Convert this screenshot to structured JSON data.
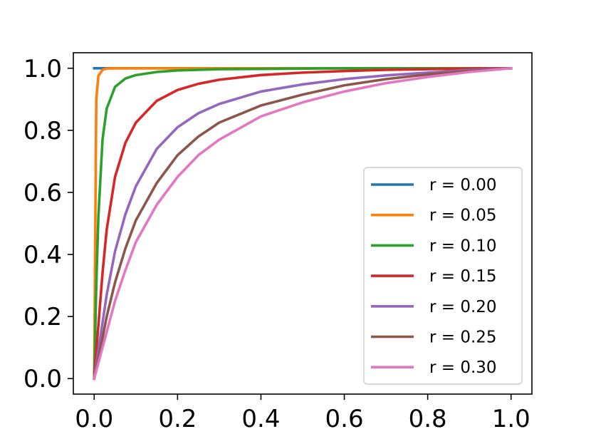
{
  "chart_data": {
    "type": "line",
    "title": "",
    "xlabel": "",
    "ylabel": "",
    "xlim": [
      -0.05,
      1.05
    ],
    "ylim": [
      -0.05,
      1.05
    ],
    "grid": false,
    "legend_position": "lower-right",
    "x_ticks": [
      {
        "value": 0.0,
        "label": "0.0"
      },
      {
        "value": 0.2,
        "label": "0.2"
      },
      {
        "value": 0.4,
        "label": "0.4"
      },
      {
        "value": 0.6,
        "label": "0.6"
      },
      {
        "value": 0.8,
        "label": "0.8"
      },
      {
        "value": 1.0,
        "label": "1.0"
      }
    ],
    "y_ticks": [
      {
        "value": 0.0,
        "label": "0.0"
      },
      {
        "value": 0.2,
        "label": "0.2"
      },
      {
        "value": 0.4,
        "label": "0.4"
      },
      {
        "value": 0.6,
        "label": "0.6"
      },
      {
        "value": 0.8,
        "label": "0.8"
      },
      {
        "value": 1.0,
        "label": "1.0"
      }
    ],
    "x": [
      0,
      0.005,
      0.01,
      0.02,
      0.03,
      0.05,
      0.075,
      0.1,
      0.15,
      0.2,
      0.25,
      0.3,
      0.4,
      0.5,
      0.6,
      0.7,
      0.8,
      0.9,
      1.0
    ],
    "series": [
      {
        "name": "r = 0.00",
        "color": "#1f77b4",
        "values": [
          1.0,
          1.0,
          1.0,
          1.0,
          1.0,
          1.0,
          1.0,
          1.0,
          1.0,
          1.0,
          1.0,
          1.0,
          1.0,
          1.0,
          1.0,
          1.0,
          1.0,
          1.0,
          1.0
        ]
      },
      {
        "name": "r = 0.05",
        "color": "#ff7f0e",
        "values": [
          0.0,
          0.9,
          0.975,
          0.995,
          0.999,
          1.0,
          1.0,
          1.0,
          1.0,
          1.0,
          1.0,
          1.0,
          1.0,
          1.0,
          1.0,
          1.0,
          1.0,
          1.0,
          1.0
        ]
      },
      {
        "name": "r = 0.10",
        "color": "#2ca02c",
        "values": [
          0.0,
          0.3,
          0.52,
          0.77,
          0.87,
          0.94,
          0.967,
          0.978,
          0.988,
          0.993,
          0.995,
          0.997,
          0.998,
          0.999,
          1.0,
          1.0,
          1.0,
          1.0,
          1.0
        ]
      },
      {
        "name": "r = 0.15",
        "color": "#d62728",
        "values": [
          0.0,
          0.09,
          0.17,
          0.34,
          0.48,
          0.65,
          0.76,
          0.825,
          0.895,
          0.93,
          0.95,
          0.963,
          0.978,
          0.986,
          0.991,
          0.995,
          0.997,
          0.999,
          1.0
        ]
      },
      {
        "name": "r = 0.20",
        "color": "#9467bd",
        "values": [
          0.0,
          0.045,
          0.09,
          0.18,
          0.27,
          0.41,
          0.53,
          0.62,
          0.74,
          0.81,
          0.855,
          0.885,
          0.925,
          0.948,
          0.965,
          0.977,
          0.986,
          0.994,
          1.0
        ]
      },
      {
        "name": "r = 0.25",
        "color": "#8c564b",
        "values": [
          0.0,
          0.03,
          0.065,
          0.13,
          0.2,
          0.31,
          0.42,
          0.51,
          0.63,
          0.72,
          0.78,
          0.825,
          0.88,
          0.915,
          0.945,
          0.965,
          0.98,
          0.991,
          1.0
        ]
      },
      {
        "name": "r = 0.30",
        "color": "#e377c2",
        "values": [
          0.0,
          0.025,
          0.05,
          0.1,
          0.15,
          0.25,
          0.35,
          0.44,
          0.56,
          0.65,
          0.72,
          0.77,
          0.845,
          0.89,
          0.925,
          0.952,
          0.972,
          0.988,
          1.0
        ]
      }
    ]
  }
}
